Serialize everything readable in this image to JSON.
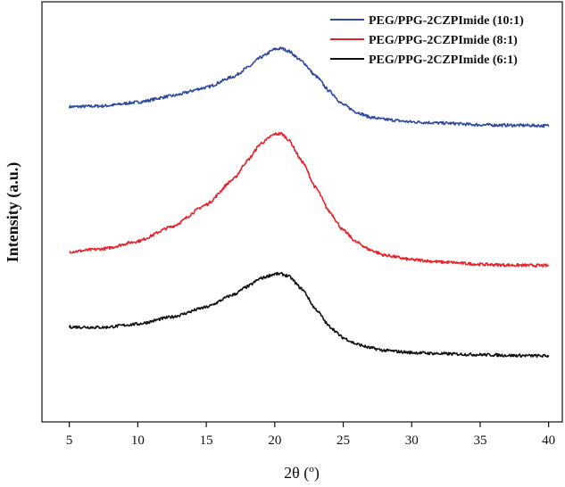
{
  "chart_data": {
    "type": "line",
    "xlabel": "2θ (º)",
    "ylabel": "Intensity (a.u.)",
    "xlim": [
      3,
      41
    ],
    "xticks": [
      5,
      10,
      15,
      20,
      25,
      30,
      35,
      40
    ],
    "yticks_shown": false,
    "grid": false,
    "legend_position": "top-right",
    "series": [
      {
        "name": "PEG/PPG-2CZPImide (10:1)",
        "color": "#2e4a9e",
        "x": [
          5,
          7.5,
          10,
          12.5,
          15,
          17,
          18,
          19,
          20,
          20.5,
          21,
          22,
          23,
          24,
          25,
          26,
          27,
          28,
          30,
          32.5,
          35,
          37.5,
          40
        ],
        "y": [
          0.75,
          0.752,
          0.761,
          0.776,
          0.796,
          0.822,
          0.843,
          0.868,
          0.887,
          0.889,
          0.883,
          0.858,
          0.823,
          0.787,
          0.755,
          0.737,
          0.725,
          0.72,
          0.714,
          0.711,
          0.707,
          0.706,
          0.705
        ]
      },
      {
        "name": "PEG/PPG-2CZPImide (8:1)",
        "color": "#e8202a",
        "x": [
          5,
          7.5,
          10,
          12.5,
          15,
          17,
          18,
          19,
          20,
          20.5,
          21,
          22,
          23,
          24,
          25,
          26,
          27,
          28,
          30,
          32.5,
          35,
          37.5,
          40
        ],
        "y": [
          0.405,
          0.412,
          0.43,
          0.465,
          0.517,
          0.578,
          0.622,
          0.663,
          0.685,
          0.686,
          0.672,
          0.62,
          0.557,
          0.5,
          0.456,
          0.427,
          0.409,
          0.397,
          0.386,
          0.38,
          0.375,
          0.373,
          0.372
        ]
      },
      {
        "name": "PEG/PPG-2CZPImide (6:1)",
        "color": "#111111",
        "x": [
          5,
          7.5,
          10,
          12.5,
          15,
          17,
          18,
          19,
          20,
          20.5,
          21,
          22,
          23,
          24,
          25,
          26,
          27,
          28,
          30,
          32.5,
          35,
          37.5,
          40
        ],
        "y": [
          0.226,
          0.225,
          0.233,
          0.25,
          0.273,
          0.303,
          0.322,
          0.342,
          0.352,
          0.352,
          0.347,
          0.316,
          0.268,
          0.227,
          0.2,
          0.185,
          0.176,
          0.17,
          0.165,
          0.162,
          0.16,
          0.158,
          0.157
        ]
      }
    ]
  }
}
